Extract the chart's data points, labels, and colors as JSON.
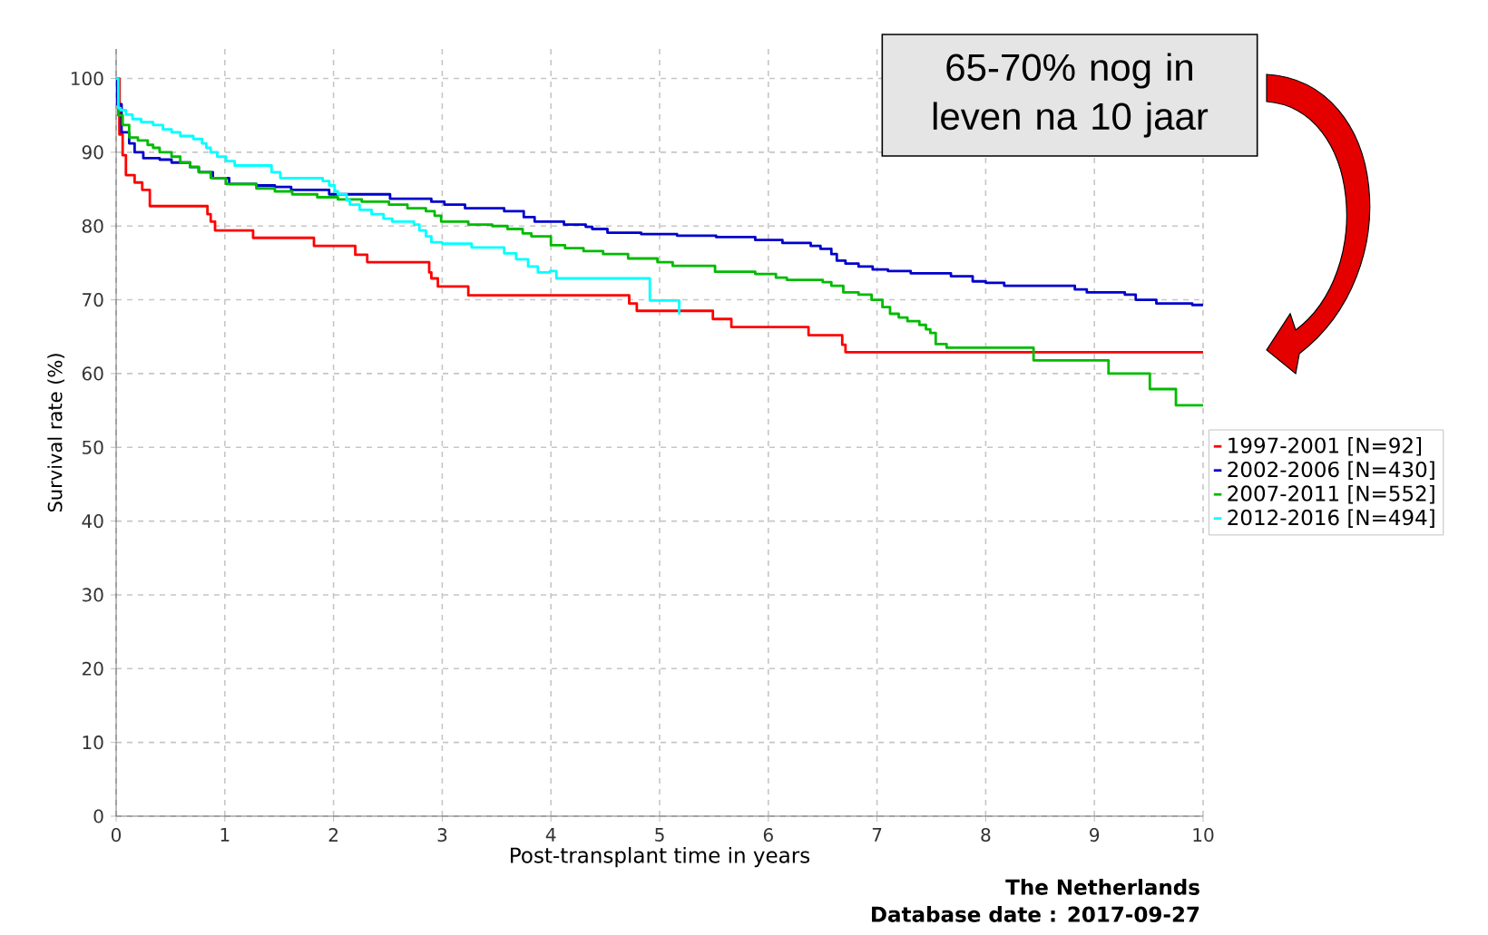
{
  "chart_data": {
    "type": "step",
    "xlabel": "Post-transplant time in years",
    "ylabel": "Survival rate (%)",
    "xlim": [
      0,
      10
    ],
    "ylim": [
      0,
      104
    ],
    "xticks": [
      0,
      1,
      2,
      3,
      4,
      5,
      6,
      7,
      8,
      9,
      10
    ],
    "yticks": [
      0,
      10,
      20,
      30,
      40,
      50,
      60,
      70,
      80,
      90,
      100
    ],
    "grid": true,
    "legend": "right",
    "series": [
      {
        "name": "1997-2001 [N=92]",
        "color": "#ff0000",
        "x": [
          0,
          0.03,
          0.06,
          0.09,
          0.17,
          0.24,
          0.31,
          0.84,
          0.87,
          0.91,
          1.26,
          1.82,
          2.2,
          2.31,
          2.88,
          2.9,
          2.96,
          3.24,
          4.72,
          4.79,
          5.49,
          5.66,
          6.37,
          6.68,
          6.71,
          10
        ],
        "values": [
          100,
          92.4,
          89.6,
          86.9,
          85.9,
          84.9,
          82.7,
          81.6,
          80.6,
          79.4,
          78.4,
          77.3,
          76.1,
          75.1,
          73.7,
          72.9,
          71.8,
          70.6,
          69.5,
          68.5,
          67.4,
          66.3,
          65.2,
          63.9,
          62.9,
          62.9
        ]
      },
      {
        "name": "2002-2006 [N=430]",
        "color": "#0000cc",
        "x": [
          0,
          0.01,
          0.05,
          0.12,
          0.17,
          0.25,
          0.4,
          0.51,
          0.68,
          0.76,
          0.89,
          1.04,
          1.29,
          1.46,
          1.61,
          1.96,
          2.52,
          2.9,
          3.02,
          3.21,
          3.57,
          3.75,
          3.85,
          4.12,
          4.32,
          4.38,
          4.52,
          4.83,
          5.16,
          5.52,
          5.88,
          6.13,
          6.39,
          6.48,
          6.58,
          6.63,
          6.71,
          6.83,
          6.96,
          7.1,
          7.31,
          7.68,
          7.88,
          8.0,
          8.17,
          8.82,
          8.93,
          9.28,
          9.38,
          9.57,
          9.9,
          10
        ],
        "values": [
          100,
          96.5,
          92.7,
          91.2,
          90,
          89.2,
          89,
          88.6,
          88,
          87.3,
          86.5,
          85.7,
          85.5,
          85.3,
          84.9,
          84.3,
          83.7,
          83.3,
          82.9,
          82.4,
          82,
          81.2,
          80.6,
          80.2,
          79.9,
          79.6,
          79.1,
          78.9,
          78.7,
          78.5,
          78.1,
          77.7,
          77.3,
          76.9,
          76.2,
          75.3,
          74.9,
          74.5,
          74.1,
          73.9,
          73.6,
          73.2,
          72.5,
          72.3,
          71.9,
          71.4,
          71,
          70.7,
          70,
          69.5,
          69.3,
          69.3
        ]
      },
      {
        "name": "2007-2011 [N=552]",
        "color": "#00bb00",
        "x": [
          0,
          0.02,
          0.06,
          0.12,
          0.2,
          0.29,
          0.34,
          0.4,
          0.51,
          0.59,
          0.68,
          0.76,
          0.87,
          1.01,
          1.29,
          1.46,
          1.62,
          1.85,
          2.04,
          2.26,
          2.51,
          2.68,
          2.85,
          2.93,
          2.99,
          3.24,
          3.46,
          3.6,
          3.74,
          3.82,
          4.0,
          4.13,
          4.3,
          4.48,
          4.71,
          4.98,
          5.12,
          5.51,
          5.88,
          6.07,
          6.17,
          6.5,
          6.58,
          6.69,
          6.83,
          6.95,
          7.05,
          7.12,
          7.2,
          7.28,
          7.39,
          7.45,
          7.49,
          7.54,
          7.64,
          8.44,
          9.13,
          9.51,
          9.75,
          10
        ],
        "values": [
          100,
          95,
          93.7,
          92,
          91.6,
          91,
          90.6,
          90,
          89.4,
          88.6,
          88,
          87.3,
          86.5,
          85.7,
          85.1,
          84.7,
          84.3,
          83.9,
          83.6,
          83.3,
          82.9,
          82.4,
          82,
          81.4,
          80.6,
          80.2,
          80,
          79.6,
          79,
          78.6,
          77.4,
          77,
          76.6,
          76.2,
          75.6,
          75.1,
          74.6,
          73.8,
          73.5,
          73,
          72.7,
          72.4,
          71.9,
          71,
          70.7,
          70,
          69,
          68.1,
          67.6,
          67.1,
          66.6,
          66,
          65.5,
          64,
          63.5,
          61.8,
          60,
          57.9,
          55.7,
          55.7
        ]
      },
      {
        "name": "2012-2016 [N=494]",
        "color": "#00ffff",
        "x": [
          0,
          0.02,
          0.04,
          0.09,
          0.15,
          0.23,
          0.34,
          0.43,
          0.51,
          0.59,
          0.71,
          0.79,
          0.83,
          0.87,
          0.93,
          1.01,
          1.09,
          1.43,
          1.51,
          1.57,
          1.9,
          1.96,
          2.01,
          2.04,
          2.12,
          2.15,
          2.24,
          2.35,
          2.46,
          2.54,
          2.74,
          2.79,
          2.85,
          2.9,
          3.0,
          3.27,
          3.57,
          3.68,
          3.79,
          3.88,
          3.99,
          4.05,
          4.91,
          5.18
        ],
        "values": [
          100,
          96,
          95.7,
          95.1,
          94.5,
          94.1,
          93.7,
          93.1,
          92.7,
          92.2,
          91.8,
          91.2,
          90.6,
          90,
          89.4,
          88.8,
          88.2,
          87.3,
          86.5,
          86.5,
          86.1,
          85.5,
          84.7,
          84.3,
          83.5,
          82.9,
          82.2,
          81.6,
          81,
          80.6,
          80.2,
          79.4,
          78.6,
          77.8,
          77.6,
          77.1,
          76.3,
          75.5,
          74.5,
          73.7,
          73.9,
          72.9,
          69.9,
          68
        ]
      }
    ],
    "annotations": [
      "65-70% nog in leven na 10 jaar",
      "The Netherlands",
      "Database date : 2017-09-27"
    ]
  }
}
